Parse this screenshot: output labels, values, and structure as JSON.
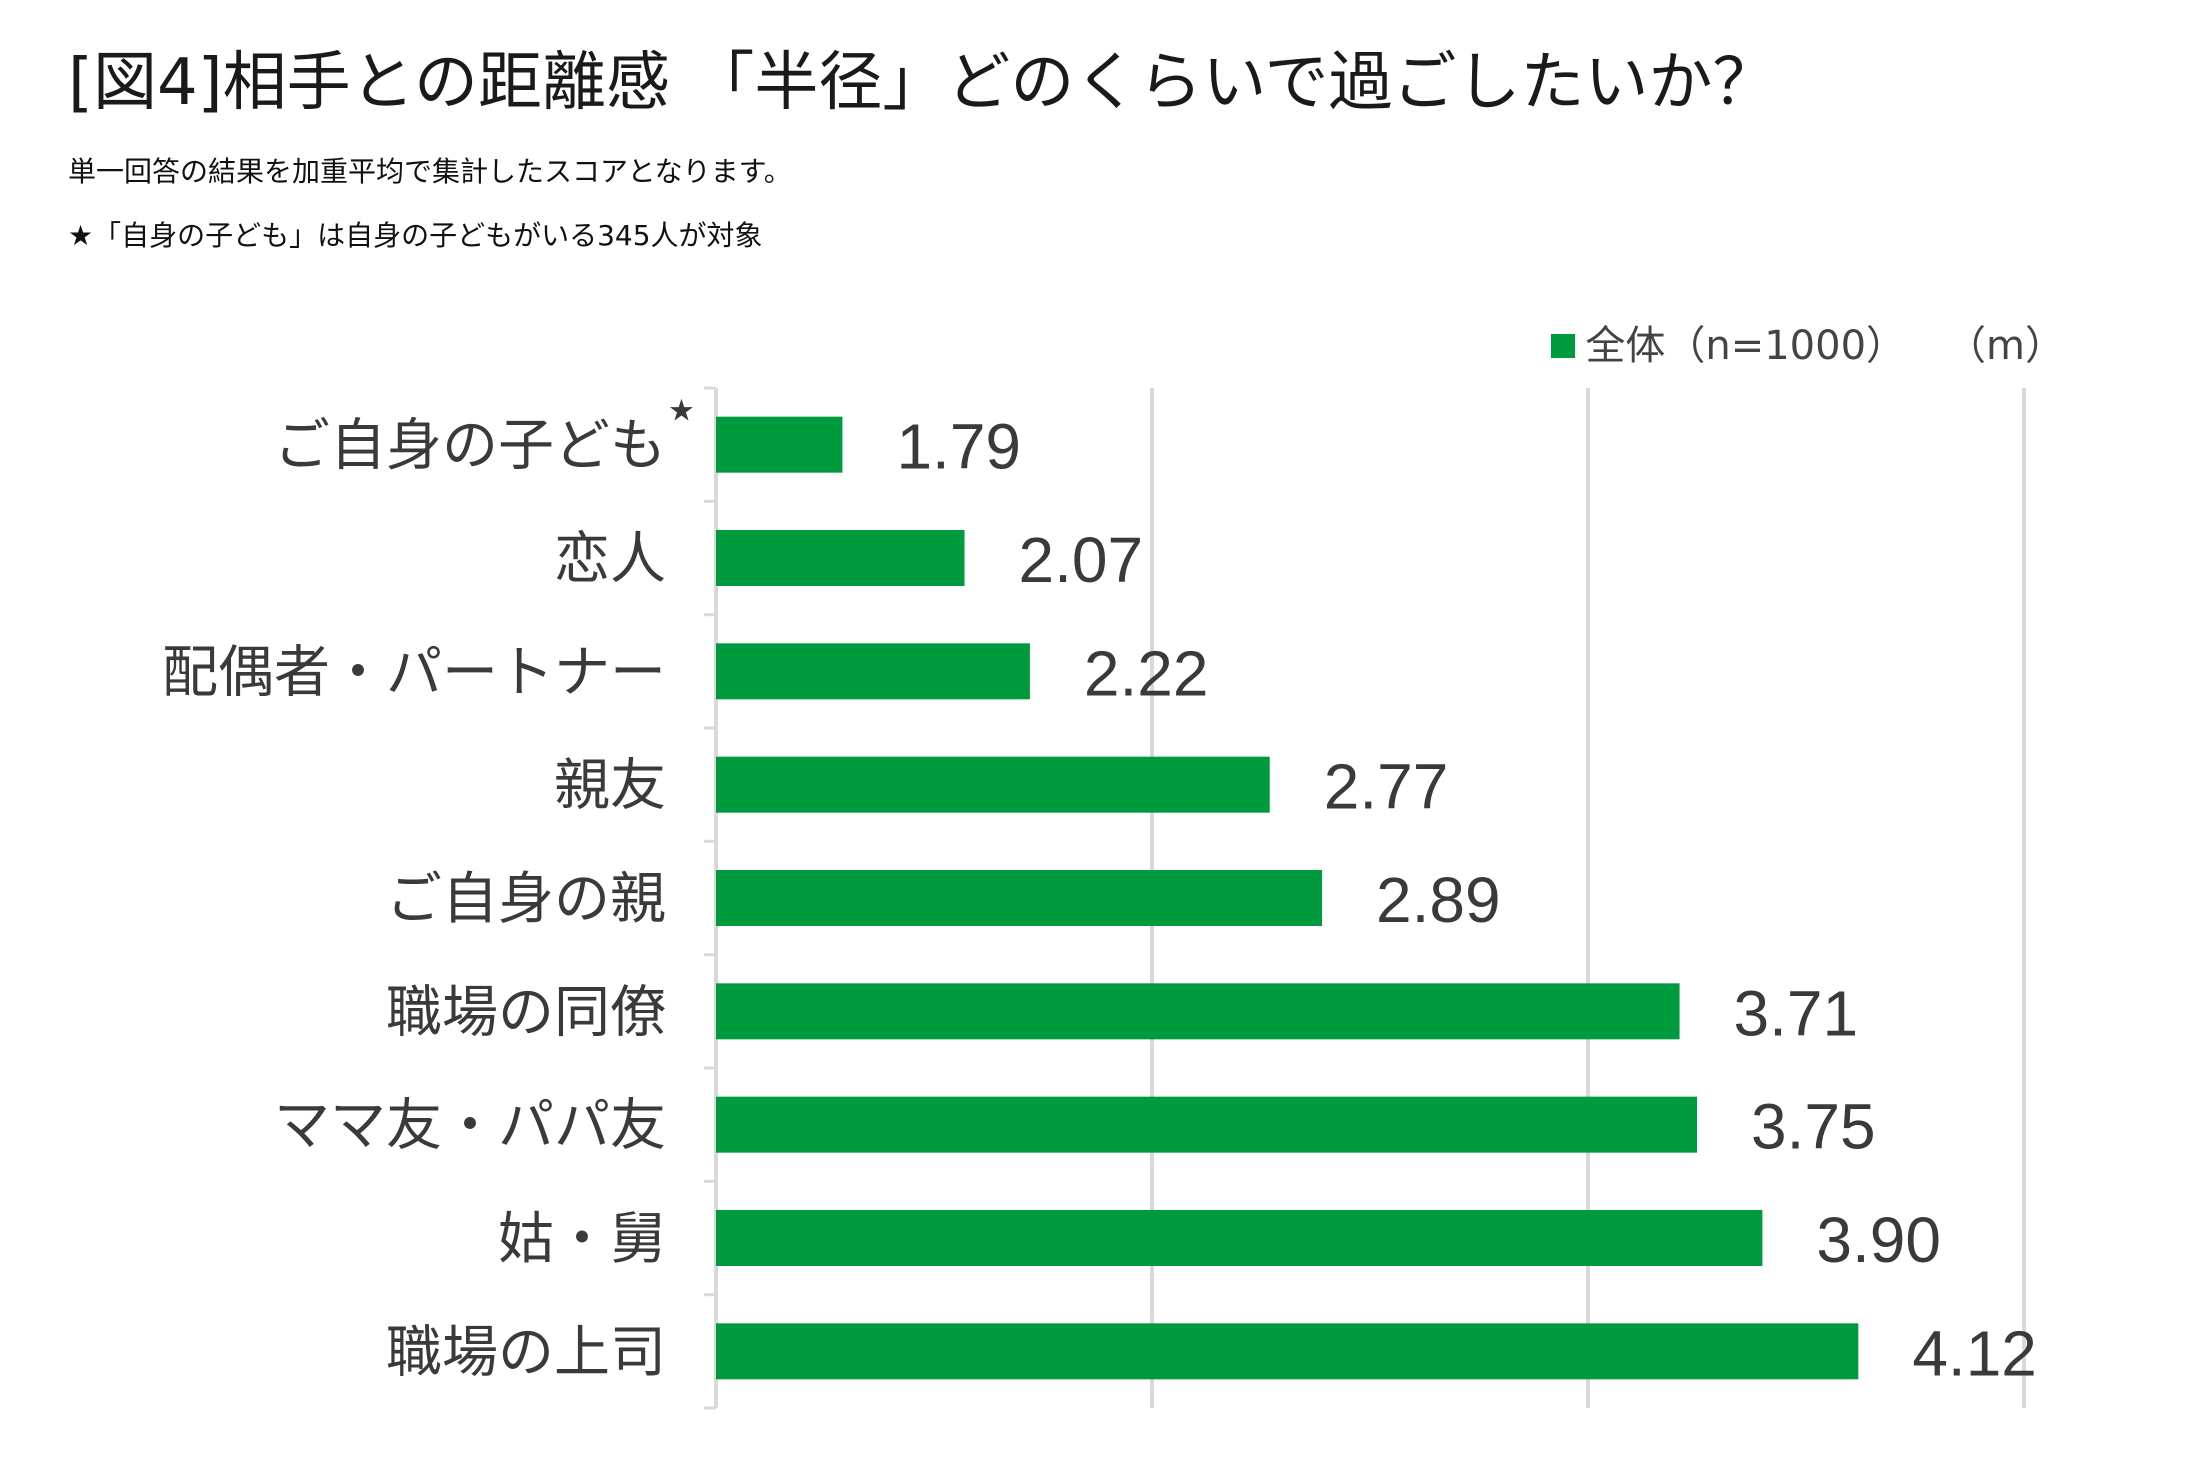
{
  "title": "[図4]相手との距離感 「半径」どのくらいで過ごしたいか？",
  "notes": [
    "単一回答の結果を加重平均で集計したスコアとなります。",
    "★「自身の子ども」は自身の子どもがいる345人が対象"
  ],
  "legend": {
    "label": "全体（n=1000）",
    "unit": "（m）",
    "color": "#009a3e"
  },
  "chart_data": {
    "type": "bar",
    "orientation": "horizontal",
    "categories": [
      "ご自身の子ども",
      "恋人",
      "配偶者・パートナー",
      "親友",
      "ご自身の親",
      "職場の同僚",
      "ママ友・パパ友",
      "姑・舅",
      "職場の上司"
    ],
    "category_marks": [
      "★",
      "",
      "",
      "",
      "",
      "",
      "",
      "",
      ""
    ],
    "series": [
      {
        "name": "全体（n=1000）",
        "values": [
          1.79,
          2.07,
          2.22,
          2.77,
          2.89,
          3.71,
          3.75,
          3.9,
          4.12
        ],
        "labels": [
          "1.79",
          "2.07",
          "2.22",
          "2.77",
          "2.89",
          "3.71",
          "3.75",
          "3.90",
          "4.12"
        ],
        "color": "#009a3e"
      }
    ],
    "xlim": [
      1.5,
      4.5
    ],
    "grid": true,
    "grid_color": "#d9d9d9",
    "legend_position": "top-right"
  }
}
